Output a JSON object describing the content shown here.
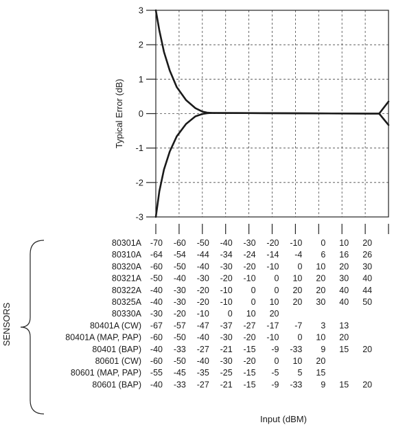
{
  "chart_data": {
    "type": "line",
    "ylabel": "Typical Error  (dB)",
    "xlabel": "Input  (dBM)",
    "ylim": [
      -3,
      3
    ],
    "yticks": [
      "3",
      "2",
      "1",
      "0",
      "-1",
      "-2",
      "-3"
    ],
    "x_columns": 10,
    "grid": true,
    "series": [
      {
        "x": [
          0,
          0.15,
          0.35,
          0.6,
          0.9,
          1.3,
          1.7,
          2.0,
          2.2,
          2.4,
          9.2,
          9.6
        ],
        "y": [
          3.0,
          2.42,
          1.79,
          1.25,
          0.77,
          0.39,
          0.16,
          0.06,
          0.03,
          0.02,
          0.0,
          0.0
        ]
      },
      {
        "x": [
          0,
          0.15,
          0.35,
          0.6,
          0.9,
          1.3,
          1.7,
          2.0,
          2.2,
          2.4,
          9.2,
          9.6
        ],
        "y": [
          -3.0,
          -2.26,
          -1.62,
          -1.1,
          -0.66,
          -0.3,
          -0.08,
          -0.01,
          0.01,
          0.02,
          0.0,
          0.0
        ]
      },
      {
        "x": [
          9.6,
          10.0
        ],
        "y": [
          0.0,
          0.35
        ]
      },
      {
        "x": [
          9.6,
          10.0
        ],
        "y": [
          0.0,
          -0.33
        ]
      }
    ],
    "group_label": "SENSORS",
    "table": {
      "rows": [
        {
          "sensor": "80301A",
          "values": [
            "-70",
            "-60",
            "-50",
            "-40",
            "-30",
            "-20",
            "-10",
            "0",
            "10",
            "20"
          ]
        },
        {
          "sensor": "80310A",
          "values": [
            "-64",
            "-54",
            "-44",
            "-34",
            "-24",
            "-14",
            "-4",
            "6",
            "16",
            "26"
          ]
        },
        {
          "sensor": "80320A",
          "values": [
            "-60",
            "-50",
            "-40",
            "-30",
            "-20",
            "-10",
            "0",
            "10",
            "20",
            "30"
          ]
        },
        {
          "sensor": "80321A",
          "values": [
            "-50",
            "-40",
            "-30",
            "-20",
            "-10",
            "0",
            "10",
            "20",
            "30",
            "40"
          ]
        },
        {
          "sensor": "80322A",
          "values": [
            "-40",
            "-30",
            "-20",
            "-10",
            "0",
            "0",
            "20",
            "20",
            "40",
            "44"
          ]
        },
        {
          "sensor": "80325A",
          "values": [
            "-40",
            "-30",
            "-20",
            "-10",
            "0",
            "10",
            "20",
            "30",
            "40",
            "50"
          ]
        },
        {
          "sensor": "80330A",
          "values": [
            "-30",
            "-20",
            "-10",
            "0",
            "10",
            "20",
            "",
            "",
            "",
            ""
          ]
        },
        {
          "sensor": "80401A (CW)",
          "values": [
            "-67",
            "-57",
            "-47",
            "-37",
            "-27",
            "-17",
            "-7",
            "3",
            "13",
            ""
          ]
        },
        {
          "sensor": "80401A (MAP, PAP)",
          "values": [
            "-60",
            "-50",
            "-40",
            "-30",
            "-20",
            "-10",
            "0",
            "10",
            "20",
            ""
          ]
        },
        {
          "sensor": "80401 (BAP)",
          "values": [
            "-40",
            "-33",
            "-27",
            "-21",
            "-15",
            "-9",
            "-33",
            "9",
            "15",
            "20"
          ]
        },
        {
          "sensor": "80601 (CW)",
          "values": [
            "-60",
            "-50",
            "-40",
            "-30",
            "-20",
            "0",
            "10",
            "20",
            "",
            ""
          ]
        },
        {
          "sensor": "80601 (MAP, PAP)",
          "values": [
            "-55",
            "-45",
            "-35",
            "-25",
            "-15",
            "-5",
            "5",
            "15",
            "",
            ""
          ]
        },
        {
          "sensor": "80601 (BAP)",
          "values": [
            "-40",
            "-33",
            "-27",
            "-21",
            "-15",
            "-9",
            "-33",
            "9",
            "15",
            "20"
          ]
        }
      ]
    }
  }
}
